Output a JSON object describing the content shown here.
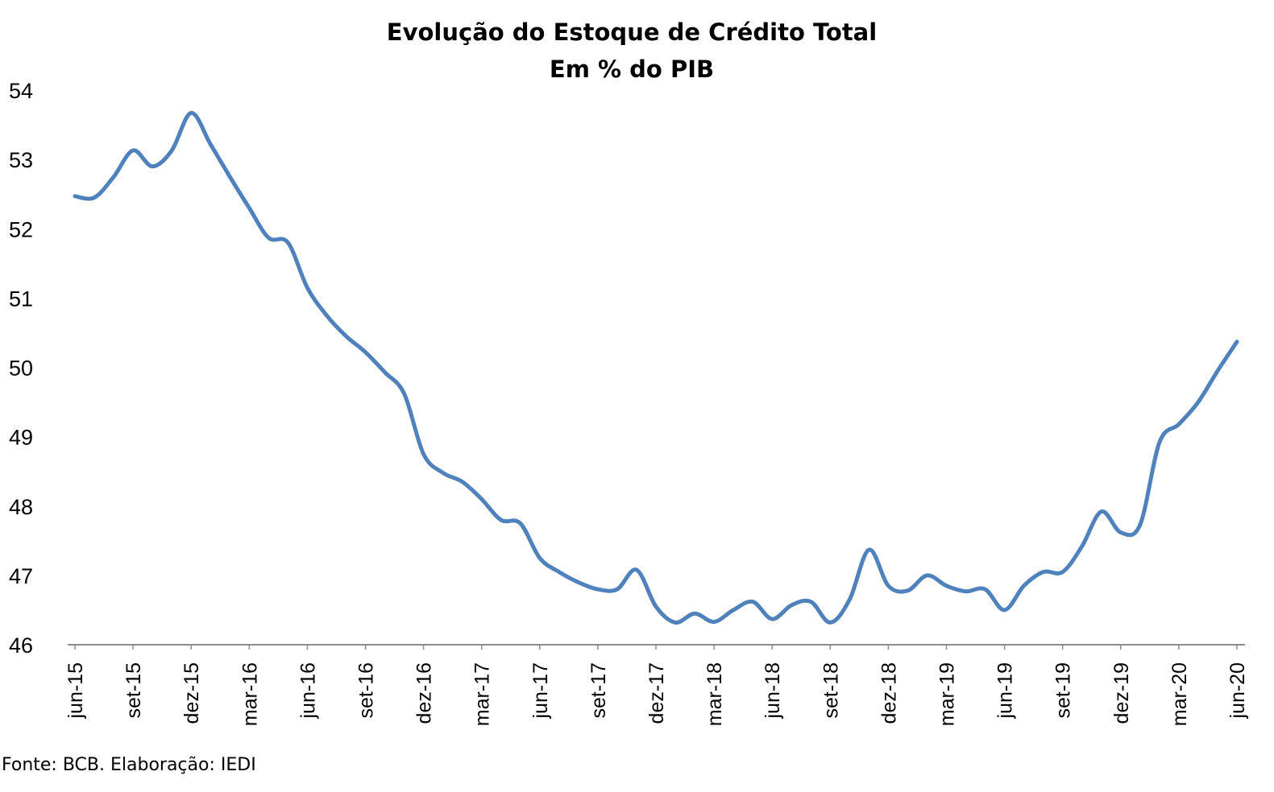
{
  "chart_data": {
    "type": "line",
    "title": "Evolução do Estoque de Crédito Total",
    "subtitle": "Em % do PIB",
    "xlabel": "",
    "ylabel": "",
    "ylim": [
      46,
      54
    ],
    "yticks": [
      "46",
      "47",
      "48",
      "49",
      "50",
      "51",
      "52",
      "53",
      "54"
    ],
    "xtick_labels": [
      "jun-15",
      "set-15",
      "dez-15",
      "mar-16",
      "jun-16",
      "set-16",
      "dez-16",
      "mar-17",
      "jun-17",
      "set-17",
      "dez-17",
      "mar-18",
      "jun-18",
      "set-18",
      "dez-18",
      "mar-19",
      "jun-19",
      "set-19",
      "dez-19",
      "mar-20",
      "jun-20"
    ],
    "legend": "none",
    "grid": false,
    "line_color": "#4f81bd",
    "x": [
      "jun-15",
      "jul-15",
      "ago-15",
      "set-15",
      "out-15",
      "nov-15",
      "dez-15",
      "jan-16",
      "fev-16",
      "mar-16",
      "abr-16",
      "mai-16",
      "jun-16",
      "jul-16",
      "ago-16",
      "set-16",
      "out-16",
      "nov-16",
      "dez-16",
      "jan-17",
      "fev-17",
      "mar-17",
      "abr-17",
      "mai-17",
      "jun-17",
      "jul-17",
      "ago-17",
      "set-17",
      "out-17",
      "nov-17",
      "dez-17",
      "jan-18",
      "fev-18",
      "mar-18",
      "abr-18",
      "mai-18",
      "jun-18",
      "jul-18",
      "ago-18",
      "set-18",
      "out-18",
      "nov-18",
      "dez-18",
      "jan-19",
      "fev-19",
      "mar-19",
      "abr-19",
      "mai-19",
      "jun-19",
      "jul-19",
      "ago-19",
      "set-19",
      "out-19",
      "nov-19",
      "dez-19",
      "jan-20",
      "fev-20",
      "mar-20",
      "abr-20",
      "mai-20",
      "jun-20"
    ],
    "series": [
      {
        "values": [
          52.47,
          52.45,
          52.75,
          53.13,
          52.9,
          53.13,
          53.67,
          53.22,
          52.75,
          52.3,
          51.87,
          51.8,
          51.15,
          50.75,
          50.45,
          50.22,
          49.93,
          49.62,
          48.75,
          48.48,
          48.35,
          48.1,
          47.8,
          47.75,
          47.25,
          47.05,
          46.9,
          46.8,
          46.8,
          47.08,
          46.55,
          46.32,
          46.45,
          46.33,
          46.5,
          46.62,
          46.37,
          46.57,
          46.62,
          46.32,
          46.65,
          47.37,
          46.85,
          46.78,
          47.0,
          46.85,
          46.77,
          46.8,
          46.5,
          46.85,
          47.05,
          47.05,
          47.42,
          47.92,
          47.62,
          47.73,
          48.92,
          49.18,
          49.5,
          49.95,
          50.37
        ]
      }
    ]
  },
  "footer": {
    "source": "Fonte: BCB. Elaboração: IEDI"
  }
}
